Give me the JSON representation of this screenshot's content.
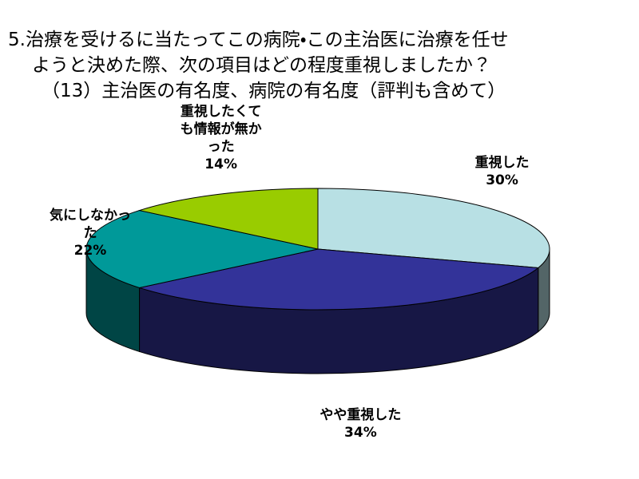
{
  "chart_data": {
    "type": "pie3d",
    "title": [
      "5.治療を受けるに当たってこの病院・この主治医に治療を任せ",
      "ようと決めた際、次の項目はどの程度重視しましたか？",
      "（13）主治医の有名度、病院の有名度（評判も含めて）"
    ],
    "categories": [
      "重視した",
      "やや重視した",
      "気にしなかった",
      "重視したくても情報が無かった"
    ],
    "values": [
      30,
      34,
      22,
      14
    ],
    "value_labels": [
      "30%",
      "34%",
      "22%",
      "14%"
    ],
    "colors": [
      "#b8e0e4",
      "#333399",
      "#009999",
      "#99cc00"
    ]
  }
}
